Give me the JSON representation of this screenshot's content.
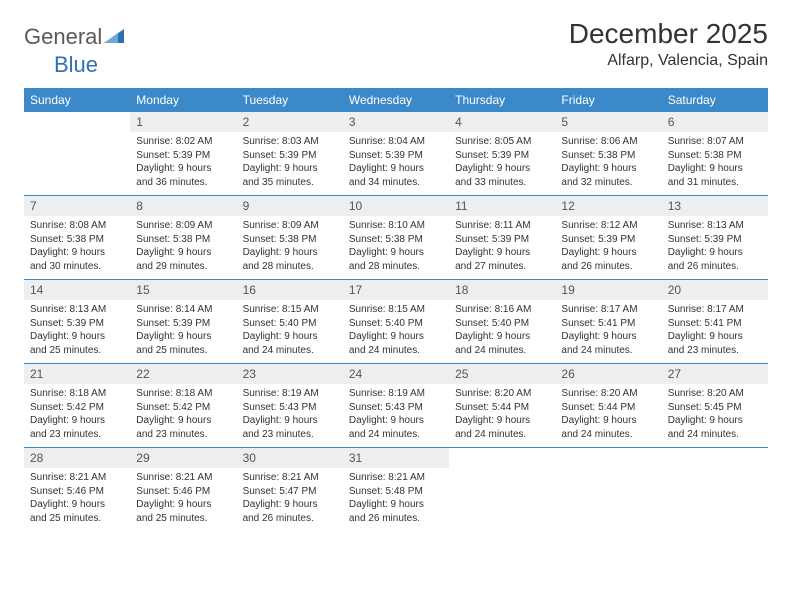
{
  "brand": {
    "name_part1": "General",
    "name_part2": "Blue",
    "text_color": "#5a5a5a",
    "accent_color": "#2f6fb3"
  },
  "title": "December 2025",
  "location": "Alfarp, Valencia, Spain",
  "colors": {
    "header_bg": "#3b89c9",
    "header_text": "#ffffff",
    "daynum_bg": "#eceef0",
    "daynum_text": "#555555",
    "body_text": "#333333",
    "rule": "#3b89c9"
  },
  "weekdays": [
    "Sunday",
    "Monday",
    "Tuesday",
    "Wednesday",
    "Thursday",
    "Friday",
    "Saturday"
  ],
  "weeks": [
    [
      {
        "n": "",
        "sr": "",
        "ss": "",
        "dl": ""
      },
      {
        "n": "1",
        "sr": "8:02 AM",
        "ss": "5:39 PM",
        "dl": "9 hours and 36 minutes."
      },
      {
        "n": "2",
        "sr": "8:03 AM",
        "ss": "5:39 PM",
        "dl": "9 hours and 35 minutes."
      },
      {
        "n": "3",
        "sr": "8:04 AM",
        "ss": "5:39 PM",
        "dl": "9 hours and 34 minutes."
      },
      {
        "n": "4",
        "sr": "8:05 AM",
        "ss": "5:39 PM",
        "dl": "9 hours and 33 minutes."
      },
      {
        "n": "5",
        "sr": "8:06 AM",
        "ss": "5:38 PM",
        "dl": "9 hours and 32 minutes."
      },
      {
        "n": "6",
        "sr": "8:07 AM",
        "ss": "5:38 PM",
        "dl": "9 hours and 31 minutes."
      }
    ],
    [
      {
        "n": "7",
        "sr": "8:08 AM",
        "ss": "5:38 PM",
        "dl": "9 hours and 30 minutes."
      },
      {
        "n": "8",
        "sr": "8:09 AM",
        "ss": "5:38 PM",
        "dl": "9 hours and 29 minutes."
      },
      {
        "n": "9",
        "sr": "8:09 AM",
        "ss": "5:38 PM",
        "dl": "9 hours and 28 minutes."
      },
      {
        "n": "10",
        "sr": "8:10 AM",
        "ss": "5:38 PM",
        "dl": "9 hours and 28 minutes."
      },
      {
        "n": "11",
        "sr": "8:11 AM",
        "ss": "5:39 PM",
        "dl": "9 hours and 27 minutes."
      },
      {
        "n": "12",
        "sr": "8:12 AM",
        "ss": "5:39 PM",
        "dl": "9 hours and 26 minutes."
      },
      {
        "n": "13",
        "sr": "8:13 AM",
        "ss": "5:39 PM",
        "dl": "9 hours and 26 minutes."
      }
    ],
    [
      {
        "n": "14",
        "sr": "8:13 AM",
        "ss": "5:39 PM",
        "dl": "9 hours and 25 minutes."
      },
      {
        "n": "15",
        "sr": "8:14 AM",
        "ss": "5:39 PM",
        "dl": "9 hours and 25 minutes."
      },
      {
        "n": "16",
        "sr": "8:15 AM",
        "ss": "5:40 PM",
        "dl": "9 hours and 24 minutes."
      },
      {
        "n": "17",
        "sr": "8:15 AM",
        "ss": "5:40 PM",
        "dl": "9 hours and 24 minutes."
      },
      {
        "n": "18",
        "sr": "8:16 AM",
        "ss": "5:40 PM",
        "dl": "9 hours and 24 minutes."
      },
      {
        "n": "19",
        "sr": "8:17 AM",
        "ss": "5:41 PM",
        "dl": "9 hours and 24 minutes."
      },
      {
        "n": "20",
        "sr": "8:17 AM",
        "ss": "5:41 PM",
        "dl": "9 hours and 23 minutes."
      }
    ],
    [
      {
        "n": "21",
        "sr": "8:18 AM",
        "ss": "5:42 PM",
        "dl": "9 hours and 23 minutes."
      },
      {
        "n": "22",
        "sr": "8:18 AM",
        "ss": "5:42 PM",
        "dl": "9 hours and 23 minutes."
      },
      {
        "n": "23",
        "sr": "8:19 AM",
        "ss": "5:43 PM",
        "dl": "9 hours and 23 minutes."
      },
      {
        "n": "24",
        "sr": "8:19 AM",
        "ss": "5:43 PM",
        "dl": "9 hours and 24 minutes."
      },
      {
        "n": "25",
        "sr": "8:20 AM",
        "ss": "5:44 PM",
        "dl": "9 hours and 24 minutes."
      },
      {
        "n": "26",
        "sr": "8:20 AM",
        "ss": "5:44 PM",
        "dl": "9 hours and 24 minutes."
      },
      {
        "n": "27",
        "sr": "8:20 AM",
        "ss": "5:45 PM",
        "dl": "9 hours and 24 minutes."
      }
    ],
    [
      {
        "n": "28",
        "sr": "8:21 AM",
        "ss": "5:46 PM",
        "dl": "9 hours and 25 minutes."
      },
      {
        "n": "29",
        "sr": "8:21 AM",
        "ss": "5:46 PM",
        "dl": "9 hours and 25 minutes."
      },
      {
        "n": "30",
        "sr": "8:21 AM",
        "ss": "5:47 PM",
        "dl": "9 hours and 26 minutes."
      },
      {
        "n": "31",
        "sr": "8:21 AM",
        "ss": "5:48 PM",
        "dl": "9 hours and 26 minutes."
      },
      {
        "n": "",
        "sr": "",
        "ss": "",
        "dl": ""
      },
      {
        "n": "",
        "sr": "",
        "ss": "",
        "dl": ""
      },
      {
        "n": "",
        "sr": "",
        "ss": "",
        "dl": ""
      }
    ]
  ],
  "labels": {
    "sunrise": "Sunrise:",
    "sunset": "Sunset:",
    "daylight": "Daylight:"
  }
}
